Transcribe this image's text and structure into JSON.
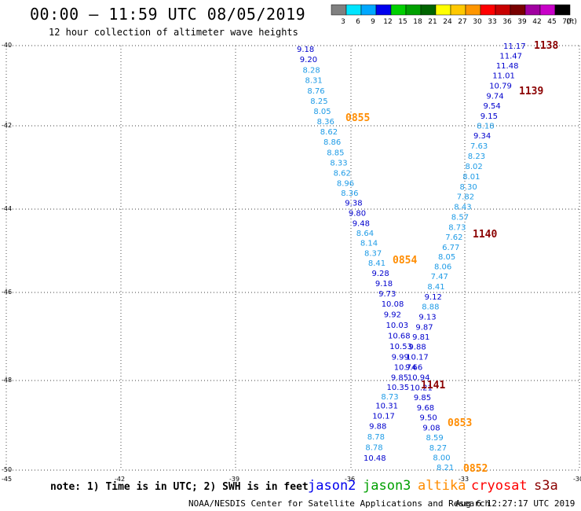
{
  "header": {
    "title": "00:00 – 11:59 UTC 08/05/2019",
    "subtitle": "12 hour collection of altimeter wave heights"
  },
  "color_scale": {
    "labels": [
      "3",
      "6",
      "9",
      "12",
      "15",
      "18",
      "21",
      "24",
      "27",
      "30",
      "33",
      "36",
      "39",
      "42",
      "45",
      "70",
      "(ft)"
    ],
    "colors": [
      "#808080",
      "#00e5ff",
      "#00a8ff",
      "#0000ee",
      "#00d000",
      "#00a000",
      "#006400",
      "#ffff00",
      "#ffc800",
      "#ff9600",
      "#ff0000",
      "#c80000",
      "#780000",
      "#a000a0",
      "#c800c8",
      "#000000"
    ]
  },
  "axes": {
    "lat_labels": [
      "-40",
      "-42",
      "-44",
      "-46",
      "-48",
      "-50"
    ],
    "lon_labels": [
      "-45",
      "-42",
      "-39",
      "-36",
      "-33",
      "-30"
    ]
  },
  "time_labels": [
    {
      "text": "1138",
      "color": "#8b0000"
    },
    {
      "text": "1139",
      "color": "#8b0000"
    },
    {
      "text": "0855",
      "color": "#ff8c00"
    },
    {
      "text": "1140",
      "color": "#8b0000"
    },
    {
      "text": "0854",
      "color": "#ff8c00"
    },
    {
      "text": "1141",
      "color": "#8b0000"
    },
    {
      "text": "0853",
      "color": "#ff8c00"
    },
    {
      "text": "0852",
      "color": "#ff8c00"
    }
  ],
  "track_west": [
    {
      "v": "9.18",
      "c": "#0000cd"
    },
    {
      "v": "9.20",
      "c": "#0000cd"
    },
    {
      "v": "8.28",
      "c": "#1e9be6"
    },
    {
      "v": "8.31",
      "c": "#1e9be6"
    },
    {
      "v": "8.76",
      "c": "#1e9be6"
    },
    {
      "v": "8.25",
      "c": "#1e9be6"
    },
    {
      "v": "8.05",
      "c": "#1e9be6"
    },
    {
      "v": "8.36",
      "c": "#1e9be6"
    },
    {
      "v": "8.62",
      "c": "#1e9be6"
    },
    {
      "v": "8.86",
      "c": "#1e9be6"
    },
    {
      "v": "8.85",
      "c": "#1e9be6"
    },
    {
      "v": "8.33",
      "c": "#1e9be6"
    },
    {
      "v": "8.62",
      "c": "#1e9be6"
    },
    {
      "v": "8.96",
      "c": "#1e9be6"
    },
    {
      "v": "8.36",
      "c": "#1e9be6"
    },
    {
      "v": "9.38",
      "c": "#0000cd"
    },
    {
      "v": "9.80",
      "c": "#0000cd"
    },
    {
      "v": "9.48",
      "c": "#0000cd"
    },
    {
      "v": "8.64",
      "c": "#1e9be6"
    },
    {
      "v": "8.14",
      "c": "#1e9be6"
    },
    {
      "v": "8.37",
      "c": "#1e9be6"
    },
    {
      "v": "8.41",
      "c": "#1e9be6"
    },
    {
      "v": "9.28",
      "c": "#0000cd"
    },
    {
      "v": "9.18",
      "c": "#0000cd"
    },
    {
      "v": "9.73",
      "c": "#0000cd"
    },
    {
      "v": "10.08",
      "c": "#0000cd"
    },
    {
      "v": "9.92",
      "c": "#0000cd"
    },
    {
      "v": "10.03",
      "c": "#0000cd"
    },
    {
      "v": "10.68",
      "c": "#0000cd"
    },
    {
      "v": "10.53",
      "c": "#0000cd"
    },
    {
      "v": "9.99",
      "c": "#0000cd"
    },
    {
      "v": "10.74",
      "c": "#0000cd"
    },
    {
      "v": "9.85",
      "c": "#0000cd"
    },
    {
      "v": "10.35",
      "c": "#0000cd"
    },
    {
      "v": "8.73",
      "c": "#1e9be6"
    },
    {
      "v": "10.31",
      "c": "#0000cd"
    },
    {
      "v": "10.17",
      "c": "#0000cd"
    },
    {
      "v": "9.88",
      "c": "#0000cd"
    },
    {
      "v": "8.78",
      "c": "#1e9be6"
    },
    {
      "v": "8.78",
      "c": "#1e9be6"
    },
    {
      "v": "10.48",
      "c": "#0000cd"
    }
  ],
  "track_east": [
    {
      "v": "11.17",
      "c": "#0000cd"
    },
    {
      "v": "11.47",
      "c": "#0000cd"
    },
    {
      "v": "11.48",
      "c": "#0000cd"
    },
    {
      "v": "11.01",
      "c": "#0000cd"
    },
    {
      "v": "10.79",
      "c": "#0000cd"
    },
    {
      "v": "9.74",
      "c": "#0000cd"
    },
    {
      "v": "9.54",
      "c": "#0000cd"
    },
    {
      "v": "9.15",
      "c": "#0000cd"
    },
    {
      "v": "8.18",
      "c": "#1e9be6"
    },
    {
      "v": "9.34",
      "c": "#0000cd"
    },
    {
      "v": "7.63",
      "c": "#1e9be6"
    },
    {
      "v": "8.23",
      "c": "#1e9be6"
    },
    {
      "v": "8.02",
      "c": "#1e9be6"
    },
    {
      "v": "8.01",
      "c": "#1e9be6"
    },
    {
      "v": "8.30",
      "c": "#1e9be6"
    },
    {
      "v": "7.82",
      "c": "#1e9be6"
    },
    {
      "v": "8.43",
      "c": "#1e9be6"
    },
    {
      "v": "8.57",
      "c": "#1e9be6"
    },
    {
      "v": "8.73",
      "c": "#1e9be6"
    },
    {
      "v": "7.62",
      "c": "#1e9be6"
    },
    {
      "v": "6.77",
      "c": "#1e9be6"
    },
    {
      "v": "8.05",
      "c": "#1e9be6"
    },
    {
      "v": "8.06",
      "c": "#1e9be6"
    },
    {
      "v": "7.47",
      "c": "#1e9be6"
    },
    {
      "v": "8.41",
      "c": "#1e9be6"
    },
    {
      "v": "9.12",
      "c": "#0000cd"
    },
    {
      "v": "8.88",
      "c": "#1e9be6"
    },
    {
      "v": "9.13",
      "c": "#0000cd"
    },
    {
      "v": "9.87",
      "c": "#0000cd"
    },
    {
      "v": "9.81",
      "c": "#0000cd"
    },
    {
      "v": "9.88",
      "c": "#0000cd"
    },
    {
      "v": "10.17",
      "c": "#0000cd"
    },
    {
      "v": "9.66",
      "c": "#0000cd"
    },
    {
      "v": "10.94",
      "c": "#0000cd"
    },
    {
      "v": "10.21",
      "c": "#0000cd"
    },
    {
      "v": "9.85",
      "c": "#0000cd"
    },
    {
      "v": "9.68",
      "c": "#0000cd"
    },
    {
      "v": "9.50",
      "c": "#0000cd"
    },
    {
      "v": "9.08",
      "c": "#0000cd"
    },
    {
      "v": "8.59",
      "c": "#1e9be6"
    },
    {
      "v": "8.27",
      "c": "#1e9be6"
    },
    {
      "v": "8.00",
      "c": "#1e9be6"
    },
    {
      "v": "8.21",
      "c": "#1e9be6"
    }
  ],
  "footer": {
    "note": "note: 1) Time is in UTC; 2) SWH is in feet",
    "satellites": [
      {
        "name": "jason2",
        "color": "#0000ee"
      },
      {
        "name": "jason3",
        "color": "#00a000"
      },
      {
        "name": "altika",
        "color": "#ff8c00"
      },
      {
        "name": "cryosat",
        "color": "#ff0000"
      },
      {
        "name": "s3a",
        "color": "#8b0000"
      }
    ],
    "credit": "NOAA/NESDIS Center for Satellite Applications and Research",
    "generated": "Aug  6 12:27:17 UTC 2019"
  }
}
